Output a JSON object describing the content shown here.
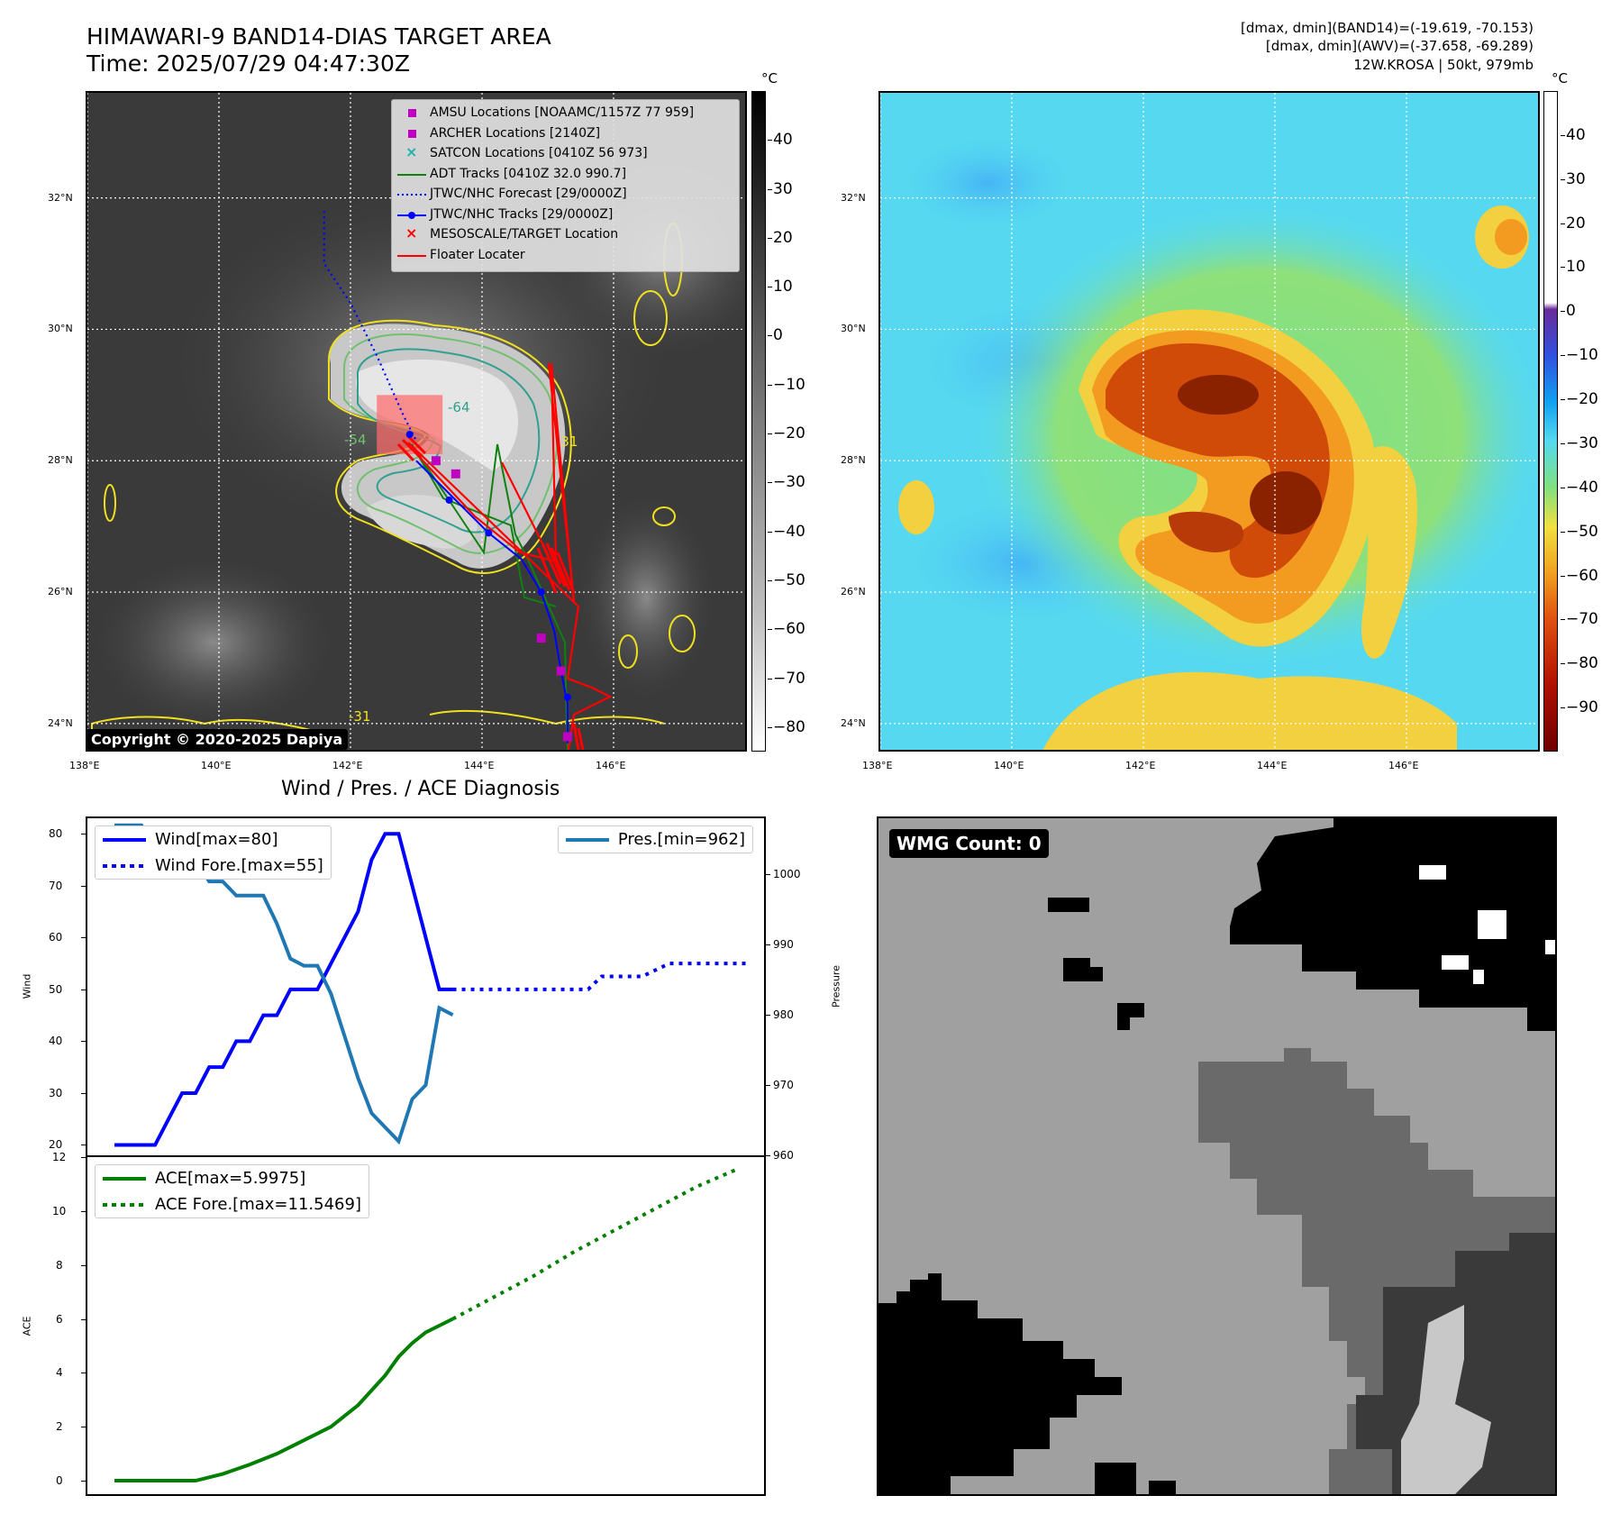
{
  "header": {
    "title_line1": "HIMAWARI-9 BAND14-DIAS TARGET AREA",
    "title_line2": "Time: 2025/07/29 04:47:30Z",
    "info_line1": "[dmax, dmin](BAND14)=(-19.619, -70.153)",
    "info_line2": "[dmax, dmin](AWV)=(-37.658, -69.289)",
    "info_line3": "12W.KROSA | 50kt, 979mb"
  },
  "maps": {
    "lat_labels": [
      "32°N",
      "30°N",
      "28°N",
      "26°N",
      "24°N"
    ],
    "lon_labels": [
      "138°E",
      "140°E",
      "142°E",
      "144°E",
      "146°E"
    ],
    "lat_values": [
      32,
      30,
      28,
      26,
      24
    ],
    "lon_values": [
      138,
      140,
      142,
      144,
      146
    ],
    "lat_range": [
      23.6,
      33.6
    ],
    "lon_range": [
      138,
      148
    ],
    "colorbar_unit": "°C",
    "ir_colorbar_ticks": [
      "40",
      "30",
      "20",
      "10",
      "0",
      "−10",
      "−20",
      "−30",
      "−40",
      "−50",
      "−60",
      "−70",
      "−80"
    ],
    "ir_colorbar_range": [
      50,
      -85
    ],
    "awv_colorbar_ticks": [
      "40",
      "30",
      "20",
      "10",
      "0",
      "−10",
      "−20",
      "−30",
      "−40",
      "−50",
      "−60",
      "−70",
      "−80",
      "−90"
    ],
    "awv_colorbar_range": [
      50,
      -100
    ],
    "contour_labels": [
      "-64",
      "-31",
      "-31",
      "-54"
    ],
    "copyright": "Copyright © 2020-2025 Dapiya",
    "legend": [
      {
        "label": "AMSU Locations [NOAAMC/1157Z 77 959]",
        "color": "#c000c0",
        "kind": "square"
      },
      {
        "label": "ARCHER Locations [2140Z]",
        "color": "#c000c0",
        "kind": "square"
      },
      {
        "label": "SATCON Locations [0410Z 56 973]",
        "color": "#20b0b0",
        "kind": "x"
      },
      {
        "label": "ADT Tracks [0410Z 32.0 990.7]",
        "color": "#108010",
        "kind": "line"
      },
      {
        "label": "JTWC/NHC Forecast [29/0000Z]",
        "color": "#0000ff",
        "kind": "dotted"
      },
      {
        "label": "JTWC/NHC Tracks [29/0000Z]",
        "color": "#0000ff",
        "kind": "line-dot"
      },
      {
        "label": "MESOSCALE/TARGET Location",
        "color": "#ff0000",
        "kind": "x"
      },
      {
        "label": "Floater Locater",
        "color": "#ff0000",
        "kind": "line"
      }
    ],
    "jtwc_forecast_track": [
      [
        141.6,
        31.8
      ],
      [
        141.6,
        31.0
      ],
      [
        142.0,
        30.4
      ],
      [
        142.4,
        29.6
      ],
      [
        142.8,
        28.7
      ],
      [
        143.0,
        28.3
      ]
    ],
    "jtwc_best_track": [
      [
        143.0,
        28.0
      ],
      [
        143.5,
        27.5
      ],
      [
        144.1,
        26.9
      ],
      [
        144.6,
        26.5
      ],
      [
        144.9,
        26.0
      ],
      [
        145.1,
        25.4
      ],
      [
        145.2,
        24.8
      ],
      [
        145.3,
        24.3
      ],
      [
        145.3,
        23.7
      ]
    ],
    "jtwc_track_points": [
      [
        142.9,
        28.4
      ],
      [
        143.5,
        27.4
      ],
      [
        144.1,
        26.9
      ],
      [
        144.9,
        26.0
      ],
      [
        145.3,
        24.4
      ]
    ],
    "amsu_points": [
      [
        143.3,
        28.0
      ],
      [
        143.6,
        27.8
      ],
      [
        144.9,
        25.3
      ],
      [
        145.2,
        24.8
      ],
      [
        145.3,
        23.8
      ]
    ],
    "mesoscale_box": {
      "lon": [
        142.4,
        143.4
      ],
      "lat": [
        28.1,
        29.0
      ]
    }
  },
  "wind_pres_chart": {
    "title": "Wind / Pres. / ACE Diagnosis",
    "wind_ylabel": "Wind",
    "pres_ylabel": "Pressure",
    "ace_ylabel": "ACE",
    "wind_ticks": [
      "80",
      "70",
      "60",
      "50",
      "40",
      "30",
      "20"
    ],
    "pres_ticks": [
      "1000",
      "990",
      "980",
      "970",
      "960"
    ],
    "ace_ticks": [
      "12",
      "10",
      "8",
      "6",
      "4",
      "2",
      "0"
    ],
    "legend_wind": "Wind[max=80]",
    "legend_wind_fore": "Wind Fore.[max=55]",
    "legend_pres": "Pres.[min=962]",
    "legend_ace": "ACE[max=5.9975]",
    "legend_ace_fore": "ACE Fore.[max=11.5469]"
  },
  "chart_data": [
    {
      "type": "line",
      "title": "Wind / Pres. / ACE Diagnosis",
      "ylabel": "Wind",
      "ylim": [
        18,
        83
      ],
      "xlim": [
        -2,
        48
      ],
      "series": [
        {
          "name": "Wind[max=80]",
          "color": "#0000ff",
          "style": "solid",
          "x": [
            0,
            1,
            2,
            3,
            4,
            5,
            6,
            7,
            8,
            9,
            10,
            11,
            12,
            13,
            14,
            15,
            16,
            17,
            18,
            19,
            20,
            21,
            22,
            23,
            24,
            25
          ],
          "y": [
            20,
            20,
            20,
            20,
            25,
            30,
            30,
            35,
            35,
            40,
            40,
            45,
            45,
            50,
            50,
            50,
            55,
            60,
            65,
            75,
            80,
            80,
            70,
            60,
            50,
            50
          ]
        },
        {
          "name": "Wind Fore.[max=55]",
          "color": "#0000ff",
          "style": "dotted",
          "x": [
            25,
            28,
            31,
            35,
            36,
            38,
            39,
            41,
            43,
            45,
            47
          ],
          "y": [
            50,
            50,
            50,
            50,
            52.5,
            52.5,
            52.5,
            55,
            55,
            55,
            55
          ]
        }
      ]
    },
    {
      "type": "line",
      "ylabel": "Pressure",
      "ylim": [
        960,
        1008
      ],
      "xlim": [
        -2,
        48
      ],
      "series": [
        {
          "name": "Pres.[min=962]",
          "color": "#1f77b4",
          "style": "solid",
          "x": [
            0,
            1,
            2,
            3,
            4,
            5,
            6,
            7,
            8,
            9,
            10,
            11,
            12,
            13,
            14,
            15,
            16,
            17,
            18,
            19,
            20,
            21,
            22,
            23,
            24,
            25
          ],
          "y": [
            1007,
            1007,
            1007,
            1003,
            1003,
            1002,
            1002,
            999,
            999,
            997,
            997,
            997,
            993,
            988,
            987,
            987,
            983,
            977,
            971,
            966,
            964,
            962,
            968,
            970,
            981,
            980
          ]
        }
      ]
    },
    {
      "type": "line",
      "ylabel": "ACE",
      "ylim": [
        -0.5,
        12
      ],
      "xlim": [
        -2,
        48
      ],
      "series": [
        {
          "name": "ACE[max=5.9975]",
          "color": "#008000",
          "style": "solid",
          "x": [
            0,
            2,
            4,
            6,
            8,
            10,
            12,
            14,
            16,
            18,
            20,
            21,
            22,
            23,
            24,
            25
          ],
          "y": [
            0,
            0,
            0,
            0,
            0.25,
            0.6,
            1.0,
            1.5,
            2.0,
            2.8,
            3.9,
            4.6,
            5.1,
            5.5,
            5.75,
            6.0
          ]
        },
        {
          "name": "ACE Fore.[max=11.5469]",
          "color": "#008000",
          "style": "dotted",
          "x": [
            25,
            28,
            31,
            34,
            37,
            40,
            43,
            46
          ],
          "y": [
            6.0,
            6.8,
            7.6,
            8.5,
            9.3,
            10.1,
            10.9,
            11.55
          ]
        }
      ]
    }
  ],
  "wmg": {
    "label": "WMG Count: 0"
  },
  "colors": {
    "ir_background": "#3a3a3a",
    "awv_background": "#56d9f0",
    "contour_yellow": "#f0e020",
    "contour_green": "#70c070",
    "contour_teal": "#30a090",
    "red": "#ff0000",
    "blue": "#0000ff",
    "green": "#008000"
  }
}
